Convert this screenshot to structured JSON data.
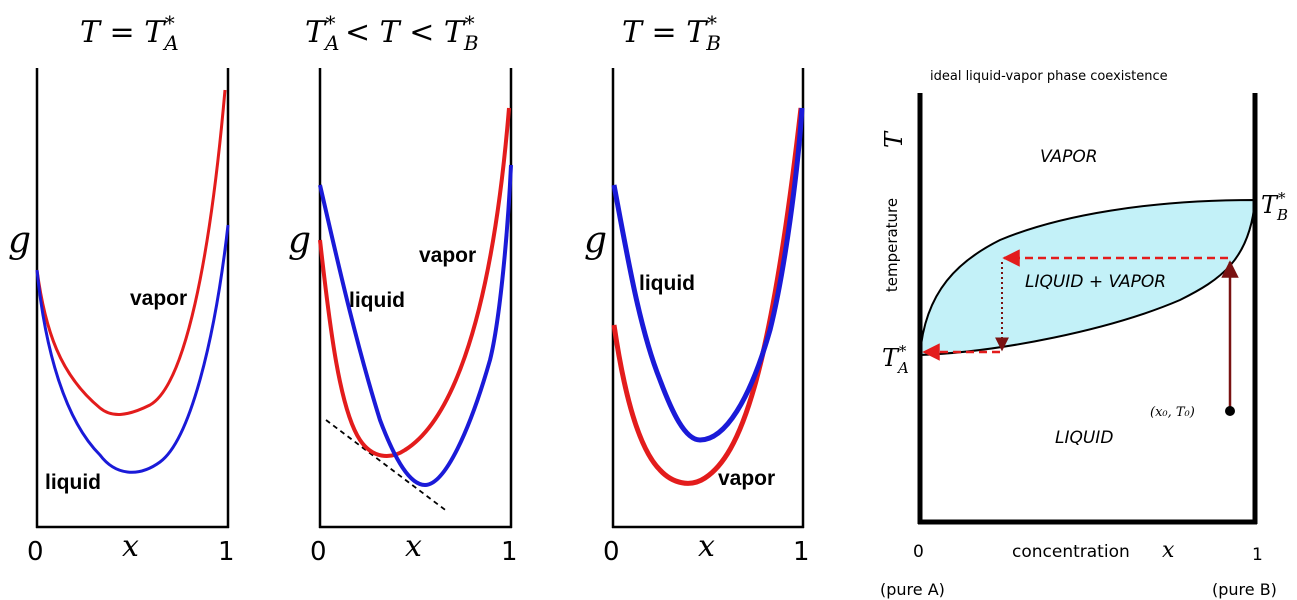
{
  "panels": [
    {
      "title": {
        "pre": "T = T",
        "sub": "A",
        "sup": "*"
      },
      "ylabel": "g",
      "xlabel": "x",
      "tick0": "0",
      "tick1": "1",
      "upper_label": "vapor",
      "lower_label": "liquid"
    },
    {
      "title": {
        "lhs": "T",
        "lhs_sub": "A",
        "lhs_sup": "*",
        "mid": " < T < ",
        "rhs": "T",
        "rhs_sub": "B",
        "rhs_sup": "*"
      },
      "ylabel": "g",
      "xlabel": "x",
      "tick0": "0",
      "tick1": "1",
      "vapor_label": "vapor",
      "liquid_label": "liquid"
    },
    {
      "title": {
        "pre": "T = T",
        "sub": "B",
        "sup": "*"
      },
      "ylabel": "g",
      "xlabel": "x",
      "tick0": "0",
      "tick1": "1",
      "liquid_label": "liquid",
      "vapor_label": "vapor"
    }
  ],
  "phase_diagram": {
    "title": "ideal liquid-vapor phase coexistence",
    "y_symbol": "T",
    "y_label": "temperature",
    "x_label": "concentration",
    "x_symbol": "x",
    "tick0": "0",
    "tick1": "1",
    "pure_a": "(pure A)",
    "pure_b": "(pure B)",
    "vapor_region": "VAPOR",
    "coexist_region": "LIQUID + VAPOR",
    "liquid_region": "LIQUID",
    "ta_label": {
      "base": "T",
      "sub": "A",
      "sup": "*"
    },
    "tb_label": {
      "base": "T",
      "sub": "B",
      "sup": "*"
    },
    "point_label": "(x₀, T₀)"
  },
  "colors": {
    "vapor": "#e31c1c",
    "liquid": "#1a1ad8",
    "coexist_fill": "#c3f1f8",
    "arrow": "#e31c1c",
    "tie_line": "#7a1212"
  }
}
